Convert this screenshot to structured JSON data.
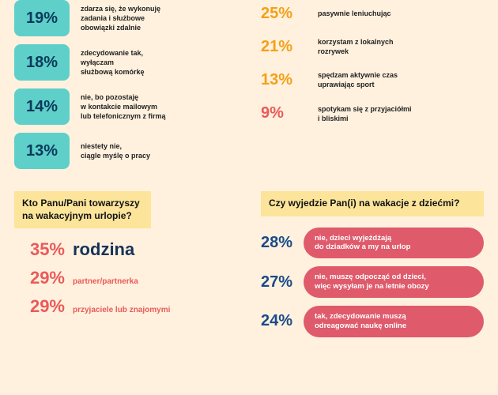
{
  "colors": {
    "teal_box_bg": "#5fcfc9",
    "teal_text": "#0a3a5a",
    "navy": "#17335a",
    "orange": "#f4a018",
    "coral": "#ea5a5a",
    "dark_coral": "#df5a6b",
    "yellow_header": "#fce59b"
  },
  "left_boxes": [
    {
      "pct": "19%",
      "desc": "zdarza się, że wykonuję\nzadania i służbowe\nobowiązki zdalnie"
    },
    {
      "pct": "18%",
      "desc": "zdecydowanie tak,\nwyłączam\nsłużbową komórkę"
    },
    {
      "pct": "14%",
      "desc": "nie, bo pozostaję\nw kontakcie mailowym\nlub telefonicznym z firmą"
    },
    {
      "pct": "13%",
      "desc": "niestety nie,\nciągle myślę o pracy"
    }
  ],
  "right_rows": [
    {
      "pct": "25%",
      "color": "#f4a018",
      "desc": "pasywnie leniuchując"
    },
    {
      "pct": "21%",
      "color": "#f4a018",
      "desc": "korzystam z lokalnych\nrozrywek"
    },
    {
      "pct": "13%",
      "color": "#f4a018",
      "desc": "spędzam aktywnie czas\nuprawiając sport"
    },
    {
      "pct": "9%",
      "color": "#ea5a5a",
      "desc": "spotykam się z przyjaciółmi\ni bliskimi"
    }
  ],
  "q1": {
    "title": "Kto Panu/Pani towarzyszy\nna wakacyjnym urlopie?",
    "rows": [
      {
        "pct": "35%",
        "pct_color": "#ea5a5a",
        "label": "rodzina",
        "label_color": "#17335a",
        "big": true
      },
      {
        "pct": "29%",
        "pct_color": "#ea5a5a",
        "label": "partner/partnerka",
        "label_color": "#ea5a5a",
        "big": false
      },
      {
        "pct": "29%",
        "pct_color": "#ea5a5a",
        "label": "przyjaciele lub znajomymi",
        "label_color": "#ea5a5a",
        "big": false
      }
    ]
  },
  "q2": {
    "title": "Czy wyjedzie Pan(i) na wakacje z dziećmi?",
    "rows": [
      {
        "pct": "28%",
        "pill_color": "#df5a6b",
        "label": "nie, dzieci wyjeżdżają\ndo dziadków a my na urlop"
      },
      {
        "pct": "27%",
        "pill_color": "#df5a6b",
        "label": "nie, muszę odpocząć od dzieci,\nwięc wysyłam je na letnie obozy"
      },
      {
        "pct": "24%",
        "pill_color": "#df5a6b",
        "label": "tak, zdecydowanie muszą\nodreagować naukę online"
      }
    ]
  }
}
